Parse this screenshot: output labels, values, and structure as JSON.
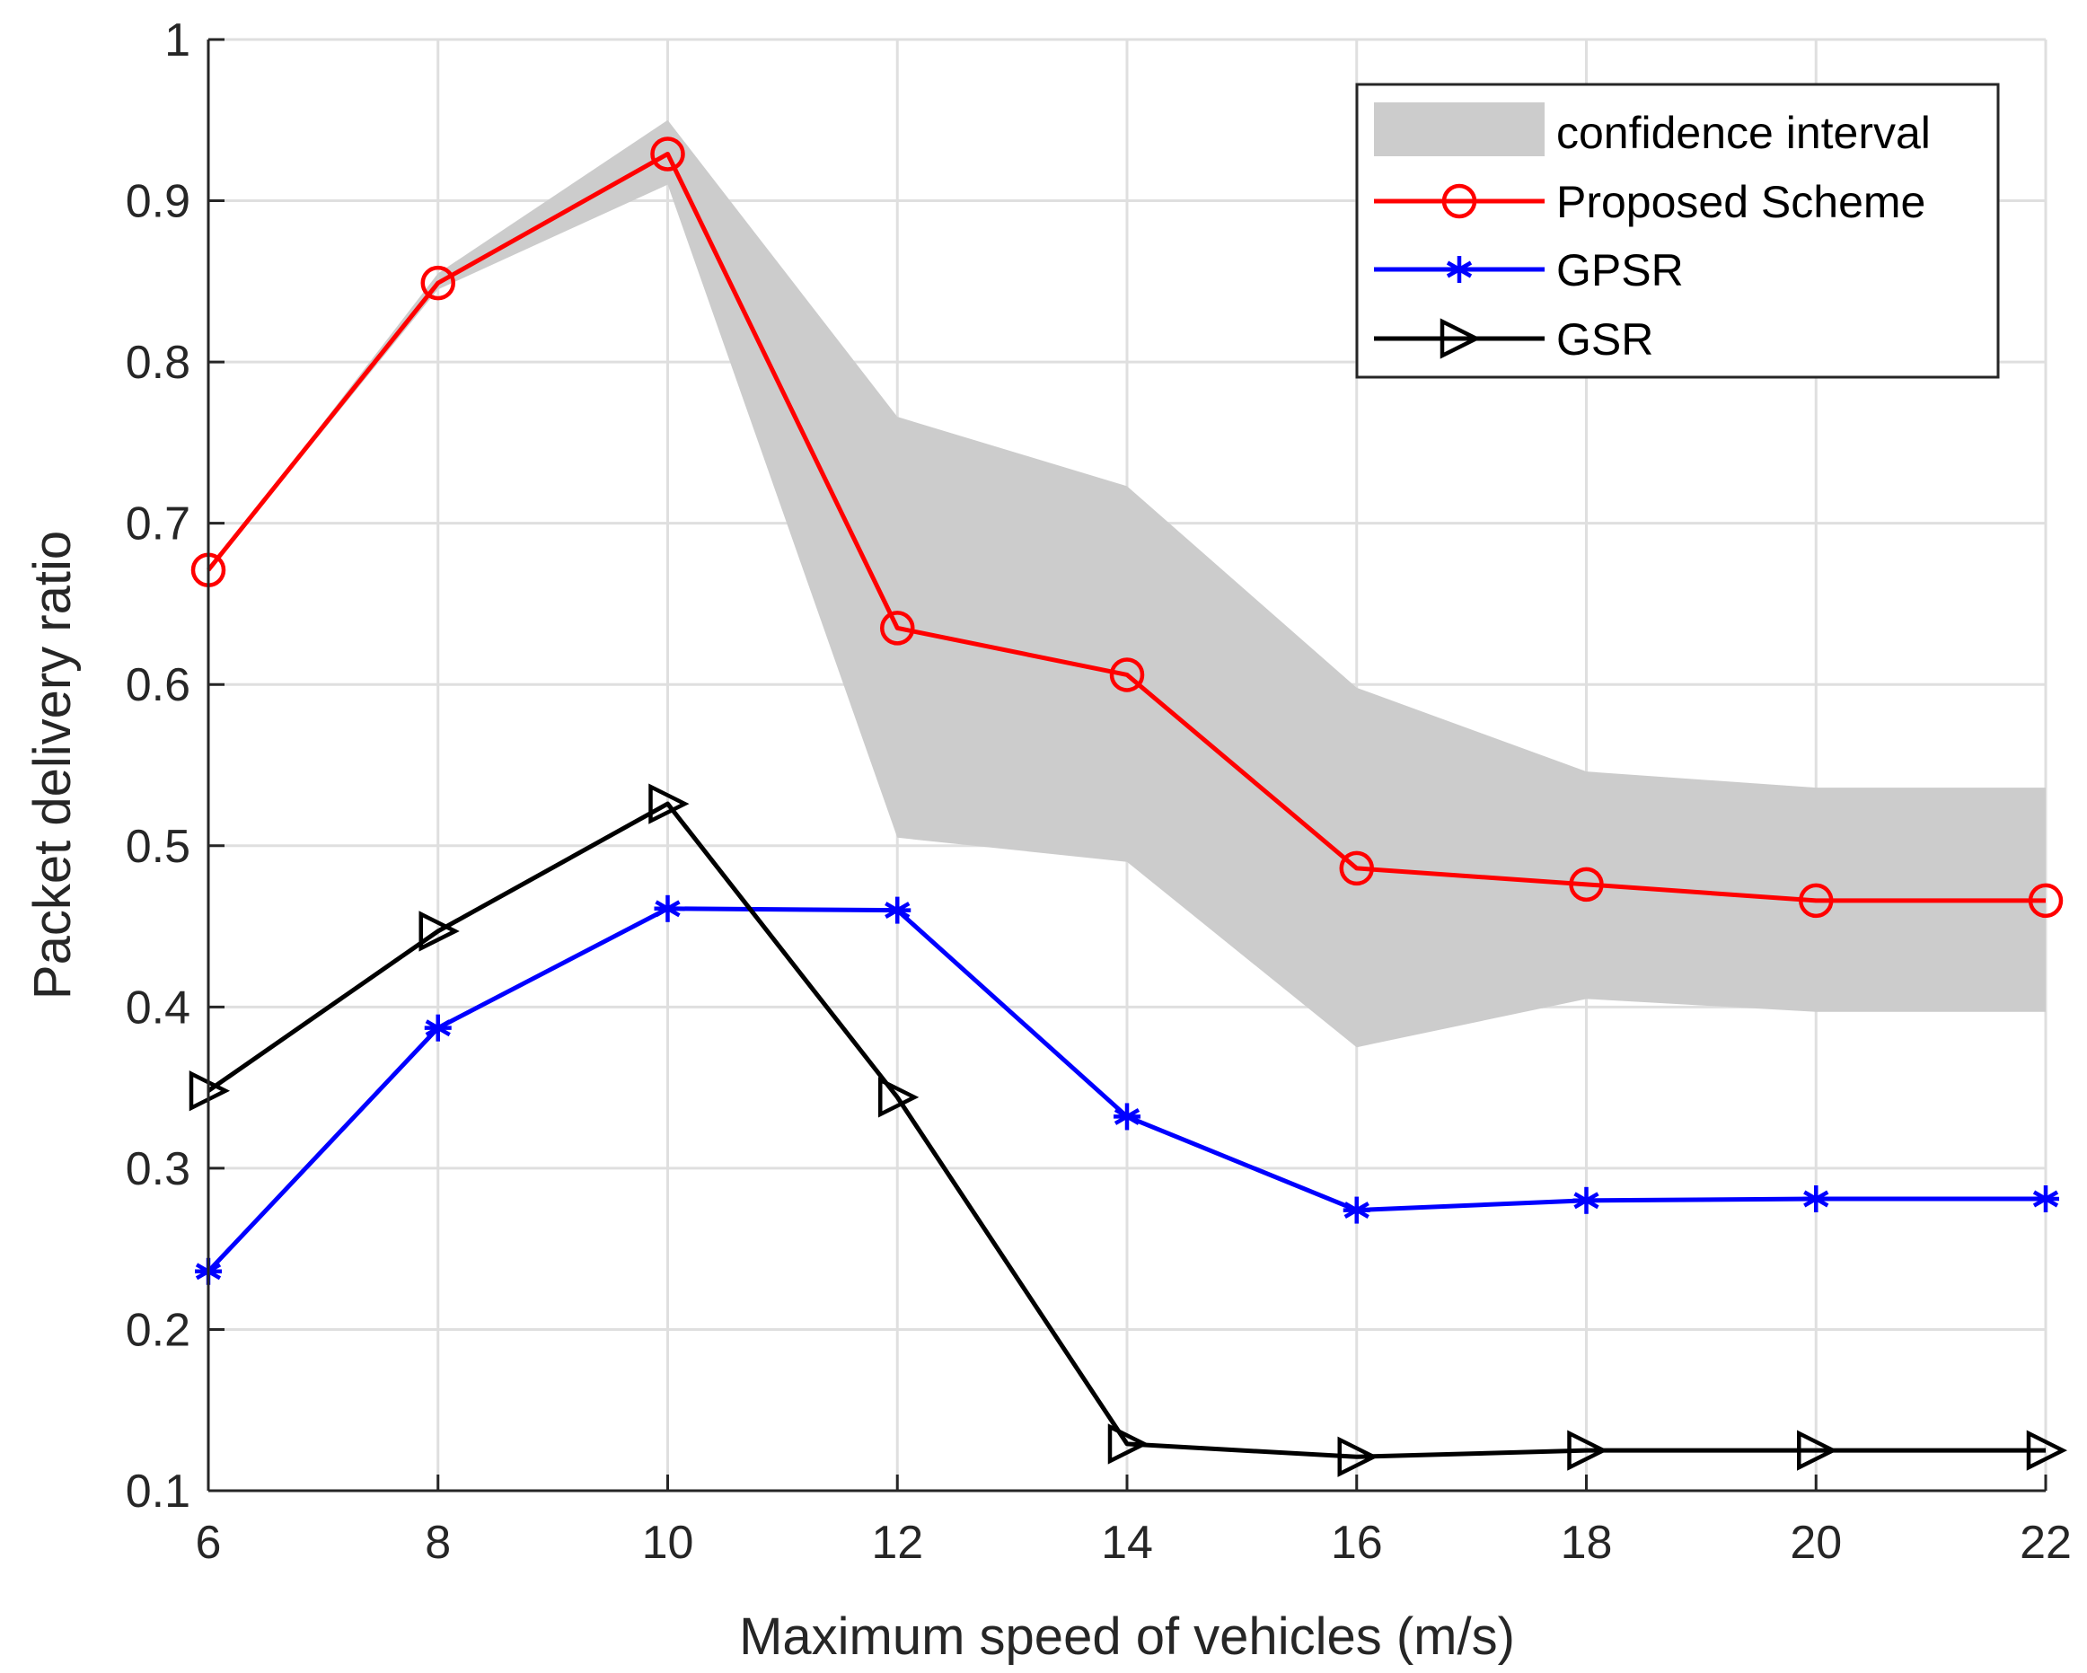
{
  "chart_data": {
    "type": "line",
    "title": "",
    "xlabel": "Maximum speed of vehicles (m/s)",
    "ylabel": "Packet delivery ratio",
    "x": [
      6,
      8,
      10,
      12,
      14,
      16,
      18,
      20,
      22
    ],
    "xlim": [
      6,
      22
    ],
    "ylim": [
      0.1,
      1
    ],
    "xticks": [
      6,
      8,
      10,
      12,
      14,
      16,
      18,
      20,
      22
    ],
    "yticks": [
      0.1,
      0.2,
      0.3,
      0.4,
      0.5,
      0.6,
      0.7,
      0.8,
      0.9,
      1
    ],
    "ytick_labels": [
      "0.1",
      "0.2",
      "0.3",
      "0.4",
      "0.5",
      "0.6",
      "0.7",
      "0.8",
      "0.9",
      "1"
    ],
    "grid": true,
    "legend_position": "top-right",
    "confidence_interval": {
      "name": "confidence interval",
      "color": "#cccccc",
      "lower": [
        0.67,
        0.845,
        0.91,
        0.505,
        0.49,
        0.375,
        0.405,
        0.397,
        0.397
      ],
      "upper": [
        0.67,
        0.855,
        0.95,
        0.766,
        0.723,
        0.598,
        0.546,
        0.536,
        0.536
      ]
    },
    "series": [
      {
        "name": "Proposed Scheme",
        "color": "#ff0000",
        "marker": "circle",
        "values": [
          0.671,
          0.849,
          0.929,
          0.635,
          0.606,
          0.486,
          0.476,
          0.466,
          0.466
        ]
      },
      {
        "name": "GPSR",
        "color": "#0000ff",
        "marker": "asterisk",
        "values": [
          0.236,
          0.387,
          0.461,
          0.46,
          0.332,
          0.274,
          0.28,
          0.281,
          0.281
        ]
      },
      {
        "name": "GSR",
        "color": "#000000",
        "marker": "triangle-right",
        "values": [
          0.348,
          0.447,
          0.526,
          0.344,
          0.129,
          0.121,
          0.125,
          0.125,
          0.125
        ]
      }
    ]
  }
}
